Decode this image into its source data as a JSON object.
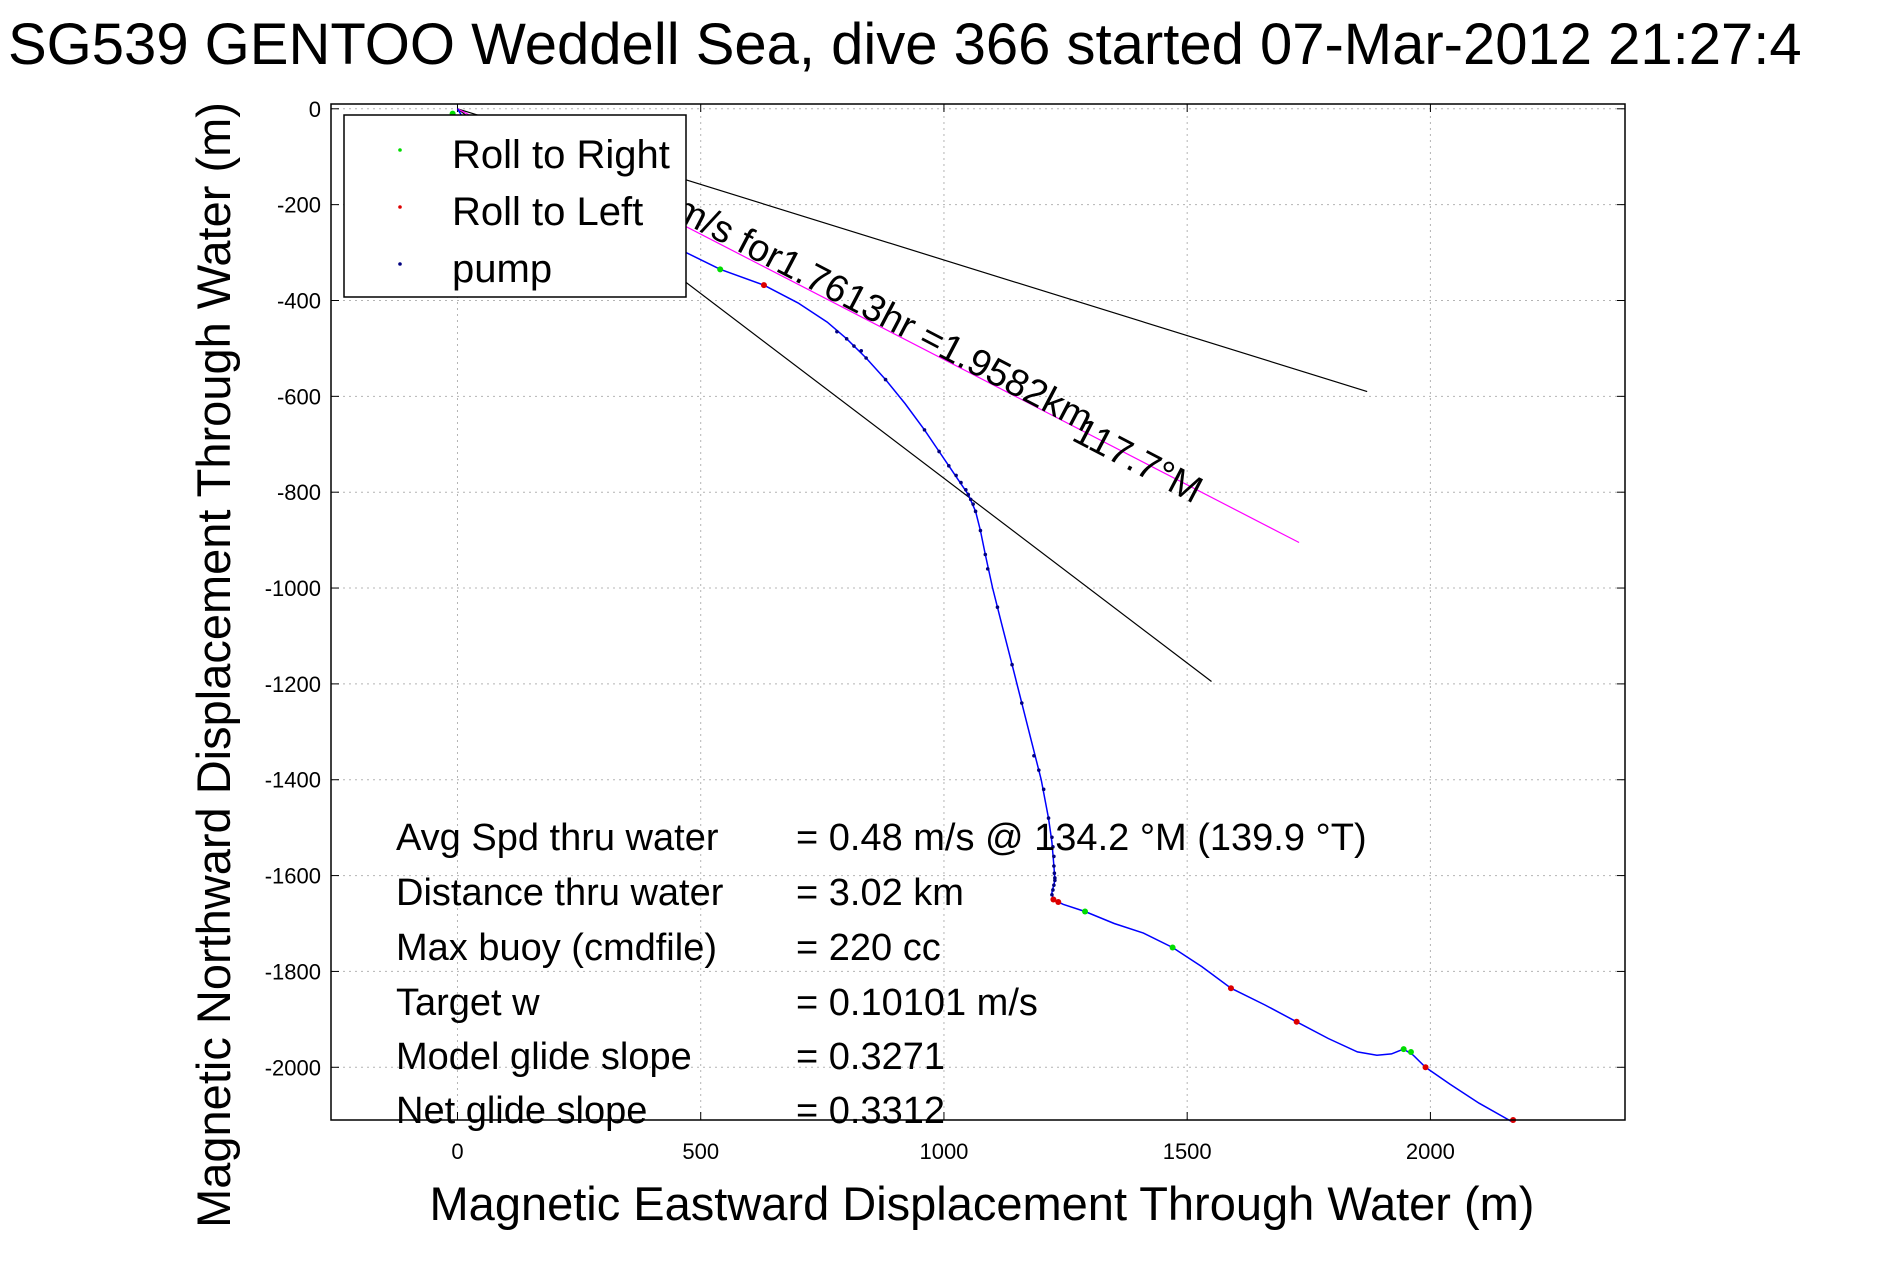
{
  "chart_data": {
    "type": "line",
    "title": "SG539 GENTOO Weddell Sea, dive 366 started 07-Mar-2012 21:27:4",
    "xlabel": "Magnetic Eastward Displacement Through Water (m)",
    "ylabel": "Magnetic Northward Displacement Through Water (m)",
    "xlim": [
      -260,
      2400
    ],
    "ylim": [
      -2110,
      10
    ],
    "xticks": [
      0,
      500,
      1000,
      1500,
      2000
    ],
    "yticks": [
      0,
      -200,
      -400,
      -600,
      -800,
      -1000,
      -1200,
      -1400,
      -1600,
      -1800,
      -2000
    ],
    "grid": true,
    "legend": {
      "placement": "top-left",
      "entries": [
        {
          "label": "Roll to Right",
          "color": "#00dd00"
        },
        {
          "label": "Roll to Left",
          "color": "#dd0000"
        },
        {
          "label": "pump",
          "color": "#000080"
        }
      ]
    },
    "track": {
      "name": "glider track",
      "color": "#0000ff",
      "points": [
        [
          0,
          0
        ],
        [
          60,
          -100
        ],
        [
          150,
          -180
        ],
        [
          250,
          -220
        ],
        [
          350,
          -250
        ],
        [
          440,
          -285
        ],
        [
          540,
          -335
        ],
        [
          630,
          -368
        ],
        [
          700,
          -405
        ],
        [
          760,
          -445
        ],
        [
          800,
          -480
        ],
        [
          840,
          -520
        ],
        [
          880,
          -565
        ],
        [
          920,
          -615
        ],
        [
          960,
          -670
        ],
        [
          990,
          -715
        ],
        [
          1010,
          -745
        ],
        [
          1030,
          -775
        ],
        [
          1050,
          -805
        ],
        [
          1065,
          -840
        ],
        [
          1075,
          -880
        ],
        [
          1085,
          -930
        ],
        [
          1100,
          -1000
        ],
        [
          1120,
          -1080
        ],
        [
          1140,
          -1160
        ],
        [
          1160,
          -1240
        ],
        [
          1180,
          -1320
        ],
        [
          1200,
          -1400
        ],
        [
          1215,
          -1480
        ],
        [
          1222,
          -1530
        ],
        [
          1226,
          -1580
        ],
        [
          1228,
          -1610
        ],
        [
          1222,
          -1635
        ],
        [
          1225,
          -1650
        ],
        [
          1245,
          -1660
        ],
        [
          1290,
          -1675
        ],
        [
          1350,
          -1700
        ],
        [
          1410,
          -1720
        ],
        [
          1470,
          -1750
        ],
        [
          1530,
          -1790
        ],
        [
          1590,
          -1835
        ],
        [
          1660,
          -1870
        ],
        [
          1725,
          -1905
        ],
        [
          1790,
          -1940
        ],
        [
          1850,
          -1968
        ],
        [
          1890,
          -1975
        ],
        [
          1920,
          -1972
        ],
        [
          1945,
          -1962
        ],
        [
          1965,
          -1975
        ],
        [
          1990,
          -2000
        ],
        [
          2040,
          -2035
        ],
        [
          2100,
          -2075
        ],
        [
          2170,
          -2115
        ]
      ]
    },
    "roll_right_points": [
      [
        -10,
        -10
      ],
      [
        540,
        -335
      ],
      [
        1290,
        -1675
      ],
      [
        1470,
        -1750
      ],
      [
        1945,
        -1962
      ],
      [
        1960,
        -1968
      ]
    ],
    "roll_left_points": [
      [
        630,
        -368
      ],
      [
        1225,
        -1650
      ],
      [
        1235,
        -1655
      ],
      [
        1590,
        -1835
      ],
      [
        1725,
        -1905
      ],
      [
        1990,
        -2000
      ],
      [
        2170,
        -2110
      ]
    ],
    "pump_points": [
      [
        780,
        -465
      ],
      [
        800,
        -480
      ],
      [
        815,
        -495
      ],
      [
        830,
        -505
      ],
      [
        840,
        -520
      ],
      [
        880,
        -565
      ],
      [
        960,
        -670
      ],
      [
        990,
        -715
      ],
      [
        1010,
        -745
      ],
      [
        1025,
        -765
      ],
      [
        1035,
        -780
      ],
      [
        1045,
        -795
      ],
      [
        1050,
        -805
      ],
      [
        1055,
        -815
      ],
      [
        1060,
        -825
      ],
      [
        1065,
        -840
      ],
      [
        1075,
        -880
      ],
      [
        1085,
        -930
      ],
      [
        1090,
        -960
      ],
      [
        1110,
        -1040
      ],
      [
        1140,
        -1160
      ],
      [
        1160,
        -1240
      ],
      [
        1185,
        -1350
      ],
      [
        1195,
        -1380
      ],
      [
        1205,
        -1420
      ],
      [
        1215,
        -1480
      ],
      [
        1222,
        -1520
      ],
      [
        1224,
        -1540
      ],
      [
        1226,
        -1560
      ],
      [
        1226,
        -1580
      ],
      [
        1227,
        -1595
      ],
      [
        1228,
        -1605
      ],
      [
        1228,
        -1610
      ],
      [
        1226,
        -1620
      ],
      [
        1224,
        -1630
      ],
      [
        1222,
        -1640
      ]
    ],
    "bracket_lines": [
      {
        "from": [
          0,
          0
        ],
        "to": [
          1870,
          -590
        ]
      },
      {
        "from": [
          0,
          0
        ],
        "to": [
          1550,
          -1195
        ]
      }
    ],
    "course_line": {
      "from": [
        0,
        0
      ],
      "to": [
        1730,
        -905
      ],
      "color": "#ff00ff"
    },
    "annotations": [
      {
        "text": "m/s for1.7613hr =1.9582km",
        "at": [
          440,
          -225
        ],
        "rotation": 27.6
      },
      {
        "text": "117.7°M",
        "at": [
          1260,
          -690
        ],
        "rotation": 27.6
      }
    ],
    "stats": [
      {
        "label": "Avg Spd thru water",
        "value": "=  0.48 m/s @ 134.2 °M (139.9 °T)"
      },
      {
        "label": "Distance thru water",
        "value": "=  3.02 km"
      },
      {
        "label": "Max buoy (cmdfile)",
        "value": "= 220 cc"
      },
      {
        "label": "Target w",
        "value": "= 0.10101 m/s"
      },
      {
        "label": "Model glide slope",
        "value": "= 0.3271"
      },
      {
        "label": "Net glide slope",
        "value": "= 0.3312"
      }
    ]
  }
}
